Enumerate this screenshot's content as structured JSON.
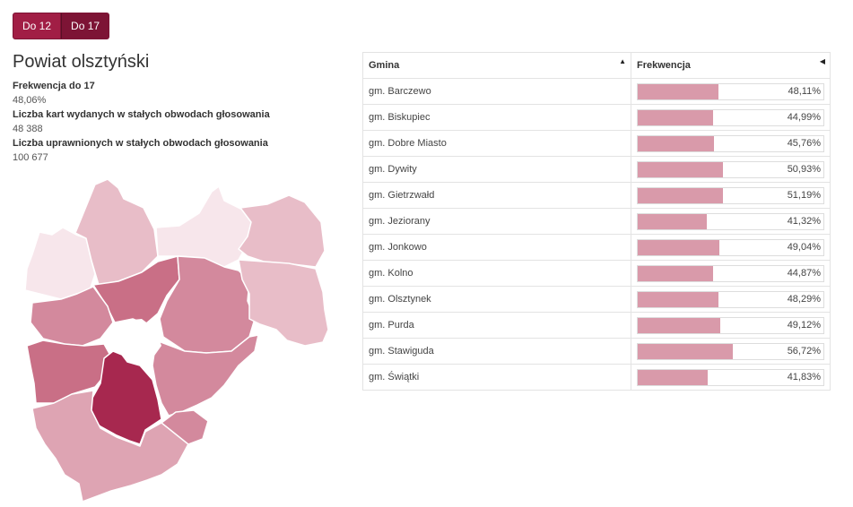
{
  "tabs": [
    {
      "label": "Do 12"
    },
    {
      "label": "Do 17"
    }
  ],
  "title": "Powiat olsztyński",
  "stats": [
    {
      "label": "Frekwencja do 17",
      "value": "48,06%"
    },
    {
      "label": "Liczba kart wydanych w stałych obwodach głosowania",
      "value": "48 388"
    },
    {
      "label": "Liczba uprawnionych w stałych obwodach głosowania",
      "value": "100 677"
    }
  ],
  "table": {
    "headers": {
      "name": "Gmina",
      "turnout": "Frekwencja"
    },
    "rows": [
      {
        "name": "gm. Barczewo",
        "label": "48,11%",
        "value": 48.11
      },
      {
        "name": "gm. Biskupiec",
        "label": "44,99%",
        "value": 44.99
      },
      {
        "name": "gm. Dobre Miasto",
        "label": "45,76%",
        "value": 45.76
      },
      {
        "name": "gm. Dywity",
        "label": "50,93%",
        "value": 50.93
      },
      {
        "name": "gm. Gietrzwałd",
        "label": "51,19%",
        "value": 51.19
      },
      {
        "name": "gm. Jeziorany",
        "label": "41,32%",
        "value": 41.32
      },
      {
        "name": "gm. Jonkowo",
        "label": "49,04%",
        "value": 49.04
      },
      {
        "name": "gm. Kolno",
        "label": "44,87%",
        "value": 44.87
      },
      {
        "name": "gm. Olsztynek",
        "label": "48,29%",
        "value": 48.29
      },
      {
        "name": "gm. Purda",
        "label": "49,12%",
        "value": 49.12
      },
      {
        "name": "gm. Stawiguda",
        "label": "56,72%",
        "value": 56.72
      },
      {
        "name": "gm. Świątki",
        "label": "41,83%",
        "value": 41.83
      }
    ]
  },
  "colors": {
    "accent": "#a11e45",
    "accent_dark": "#7d1435",
    "bar": "#d99aaa",
    "map_shades": [
      "#f7e6eb",
      "#e8bdc8",
      "#dea4b3",
      "#d3899d",
      "#c96f86",
      "#a7284f"
    ]
  },
  "icons": {
    "sort_asc": "sort-up-icon",
    "sort_desc": "sort-left-icon"
  }
}
